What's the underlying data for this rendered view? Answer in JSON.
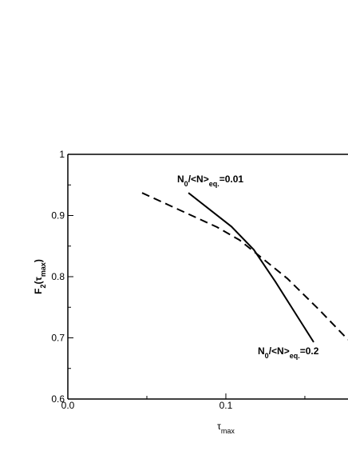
{
  "chart_data": {
    "type": "line",
    "xlabel": [
      {
        "text": "τ"
      },
      {
        "text": "max",
        "sub": true
      }
    ],
    "ylabel": [
      {
        "text": "F"
      },
      {
        "text": "2",
        "sub": true
      },
      {
        "text": "(τ"
      },
      {
        "text": "max",
        "sub": true
      },
      {
        "text": ")"
      }
    ],
    "xlim": [
      0,
      0.1773
    ],
    "ylim": [
      0.6,
      1
    ],
    "xticks": [
      {
        "value": 0,
        "label": "0.0"
      },
      0.1
    ],
    "yticks": [
      0.6,
      0.7,
      0.8,
      0.9,
      1
    ],
    "xminorticks": [
      0.05,
      0.15
    ],
    "yminorticks": [
      0.65,
      0.75,
      0.85,
      0.95
    ],
    "series": [
      {
        "color": "#000",
        "dashed": false,
        "label": [
          {
            "text": "N"
          },
          {
            "text": "0",
            "sub": true
          },
          {
            "text": "/<N>"
          },
          {
            "text": "eq.",
            "sub": true
          },
          {
            "text": "=0.01"
          }
        ],
        "x": [
          0.0763,
          0.1035,
          0.1177,
          0.1313,
          0.1556
        ],
        "values": [
          0.937,
          0.882,
          0.844,
          0.792,
          0.693
        ]
      },
      {
        "color": "#000",
        "dashed": true,
        "label": [
          {
            "text": "N"
          },
          {
            "text": "0",
            "sub": true
          },
          {
            "text": "/<N>"
          },
          {
            "text": "eq.",
            "sub": true
          },
          {
            "text": "=0.2"
          }
        ],
        "x": [
          0.047,
          0.0944,
          0.1086,
          0.1212,
          0.1389,
          0.159,
          0.1773
        ],
        "values": [
          0.937,
          0.881,
          0.86,
          0.834,
          0.797,
          0.746,
          0.697
        ]
      }
    ]
  }
}
